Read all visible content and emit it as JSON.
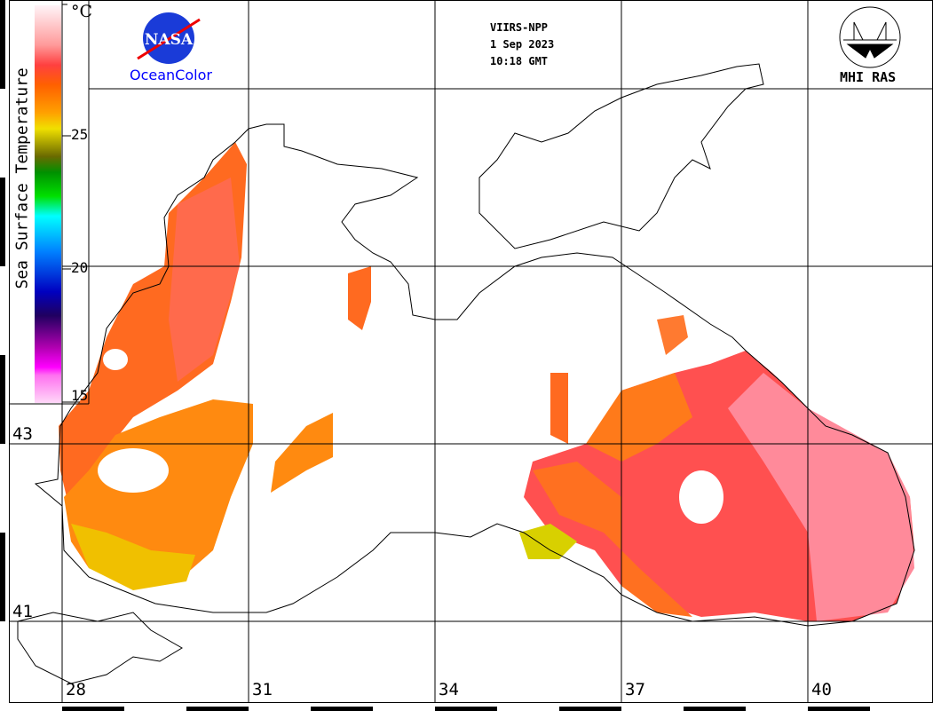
{
  "header": {
    "sensor": "VIIRS-NPP",
    "date": "1 Sep 2023",
    "time": "10:18 GMT"
  },
  "logos": {
    "left_logo_text": "NASA",
    "left_caption": "OceanColor",
    "right_caption": "MHI RAS"
  },
  "colorbar": {
    "title": "Sea Surface Temperature",
    "unit": "°C",
    "range": [
      15,
      30
    ],
    "tick_labels": [
      "25",
      "20",
      "15"
    ],
    "colors": [
      "#ffeef8",
      "#ff4444",
      "#ff6a00",
      "#ffa000",
      "#f0e000",
      "#6a6a00",
      "#00a000",
      "#00e0a0",
      "#00ffff",
      "#0080ff",
      "#0000c0",
      "#200060",
      "#a000a0",
      "#ff00ff",
      "#ffc8f8"
    ]
  },
  "axes": {
    "lat_labels": [
      "43",
      "41"
    ],
    "lon_labels": [
      "28",
      "31",
      "34",
      "37",
      "40"
    ]
  }
}
